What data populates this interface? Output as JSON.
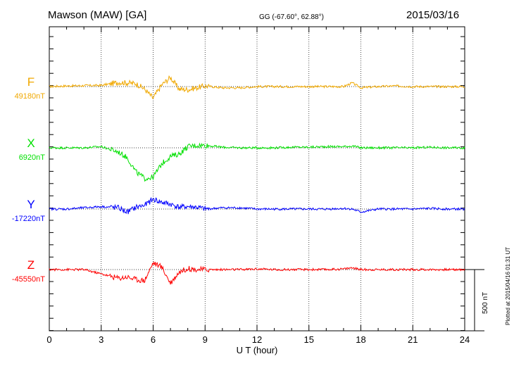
{
  "header": {
    "station": "Mawson (MAW)  [GA]",
    "coords": "GG (-67.60°,  62.88°)",
    "date": "2015/03/16"
  },
  "plotted_note": "Plotted at 2015/04/16 01:31  UT",
  "scale_label": "500 nT",
  "chart_data": {
    "type": "line",
    "title": "Mawson (MAW)  [GA]",
    "xlabel": "U T (hour)",
    "ylabel": "",
    "xlim": [
      0,
      24
    ],
    "xticks": [
      0,
      3,
      6,
      9,
      12,
      15,
      18,
      21,
      24
    ],
    "x_tick_labels": [
      "0",
      "3",
      "6",
      "9",
      "12",
      "15",
      "18",
      "21",
      "24"
    ],
    "grid": true,
    "units": "nT",
    "scale_bar_nT": 500,
    "x": [
      0,
      1,
      2,
      3,
      4,
      4.5,
      5,
      5.5,
      6,
      6.5,
      7,
      7.5,
      8,
      8.5,
      9,
      10,
      11,
      12,
      13,
      14,
      15,
      16,
      17,
      17.5,
      18,
      19,
      20,
      21,
      22,
      23,
      24
    ],
    "series": [
      {
        "name": "F",
        "baseline_label": "49180nT",
        "baseline_nT": 49180,
        "color": "#f0a800",
        "values": [
          0,
          5,
          8,
          10,
          35,
          30,
          25,
          -20,
          -95,
          15,
          75,
          -20,
          -25,
          -10,
          5,
          -10,
          -10,
          0,
          0,
          0,
          0,
          0,
          0,
          30,
          -10,
          0,
          5,
          0,
          0,
          0,
          0
        ]
      },
      {
        "name": "X",
        "baseline_label": "6920nT",
        "baseline_nT": 6920,
        "color": "#00e000",
        "values": [
          0,
          0,
          0,
          10,
          -35,
          -80,
          -195,
          -250,
          -240,
          -130,
          -70,
          -50,
          10,
          20,
          20,
          5,
          0,
          0,
          0,
          5,
          5,
          10,
          10,
          15,
          0,
          0,
          0,
          0,
          5,
          0,
          0
        ]
      },
      {
        "name": "Y",
        "baseline_label": "-17220nT",
        "baseline_nT": -17220,
        "color": "#0000ff",
        "values": [
          0,
          0,
          10,
          20,
          10,
          -25,
          15,
          30,
          80,
          55,
          40,
          15,
          20,
          15,
          0,
          10,
          10,
          0,
          0,
          0,
          0,
          0,
          5,
          0,
          -25,
          0,
          0,
          0,
          5,
          0,
          0
        ]
      },
      {
        "name": "Z",
        "baseline_label": "-45550nT",
        "baseline_nT": -45550,
        "color": "#ff0000",
        "values": [
          0,
          0,
          0,
          -35,
          -70,
          -60,
          -80,
          -90,
          55,
          20,
          -110,
          -20,
          10,
          0,
          0,
          0,
          0,
          5,
          0,
          0,
          0,
          0,
          5,
          15,
          0,
          0,
          0,
          0,
          0,
          0,
          0
        ]
      }
    ]
  }
}
